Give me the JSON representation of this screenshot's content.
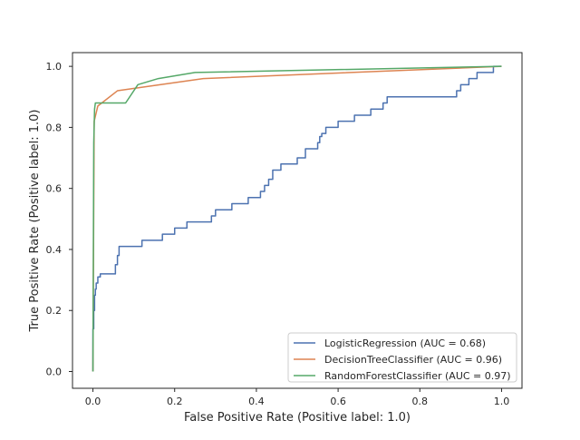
{
  "chart_data": {
    "type": "line",
    "title": "",
    "xlabel": "False Positive Rate (Positive label: 1.0)",
    "ylabel": "True Positive Rate (Positive label: 1.0)",
    "xlim": [
      -0.05,
      1.05
    ],
    "ylim": [
      -0.055,
      1.045
    ],
    "x_ticks": [
      0.0,
      0.2,
      0.4,
      0.6,
      0.8,
      1.0
    ],
    "y_ticks": [
      0.0,
      0.2,
      0.4,
      0.6,
      0.8,
      1.0
    ],
    "x_tick_labels": [
      "0.0",
      "0.2",
      "0.4",
      "0.6",
      "0.8",
      "1.0"
    ],
    "y_tick_labels": [
      "0.0",
      "0.2",
      "0.4",
      "0.6",
      "0.8",
      "1.0"
    ],
    "grid": false,
    "legend_position": "lower-right",
    "series": [
      {
        "name": "LogisticRegression (AUC = 0.68)",
        "color": "#4c72b0",
        "x": [
          0.0,
          0.0,
          0.002,
          0.002,
          0.004,
          0.004,
          0.006,
          0.006,
          0.008,
          0.008,
          0.012,
          0.012,
          0.018,
          0.018,
          0.055,
          0.055,
          0.06,
          0.06,
          0.064,
          0.064,
          0.12,
          0.12,
          0.17,
          0.17,
          0.2,
          0.2,
          0.23,
          0.23,
          0.29,
          0.29,
          0.3,
          0.3,
          0.34,
          0.34,
          0.38,
          0.38,
          0.41,
          0.41,
          0.42,
          0.42,
          0.43,
          0.43,
          0.44,
          0.44,
          0.46,
          0.46,
          0.5,
          0.5,
          0.52,
          0.52,
          0.55,
          0.55,
          0.555,
          0.555,
          0.56,
          0.56,
          0.57,
          0.57,
          0.6,
          0.6,
          0.64,
          0.64,
          0.68,
          0.68,
          0.71,
          0.71,
          0.72,
          0.72,
          0.89,
          0.89,
          0.9,
          0.9,
          0.92,
          0.92,
          0.94,
          0.94,
          0.95,
          0.95,
          0.98,
          0.98,
          1.0
        ],
        "y": [
          0.0,
          0.14,
          0.14,
          0.2,
          0.2,
          0.25,
          0.25,
          0.27,
          0.27,
          0.29,
          0.29,
          0.31,
          0.31,
          0.32,
          0.32,
          0.35,
          0.35,
          0.38,
          0.38,
          0.41,
          0.41,
          0.43,
          0.43,
          0.45,
          0.45,
          0.47,
          0.47,
          0.49,
          0.49,
          0.51,
          0.51,
          0.53,
          0.53,
          0.55,
          0.55,
          0.57,
          0.57,
          0.59,
          0.59,
          0.61,
          0.61,
          0.63,
          0.63,
          0.66,
          0.66,
          0.68,
          0.68,
          0.7,
          0.7,
          0.73,
          0.73,
          0.75,
          0.75,
          0.77,
          0.77,
          0.78,
          0.78,
          0.8,
          0.8,
          0.82,
          0.82,
          0.84,
          0.84,
          0.86,
          0.86,
          0.88,
          0.88,
          0.9,
          0.9,
          0.92,
          0.92,
          0.94,
          0.94,
          0.96,
          0.96,
          0.98,
          0.98,
          0.98,
          0.98,
          1.0,
          1.0
        ]
      },
      {
        "name": "DecisionTreeClassifier (AUC = 0.96)",
        "color": "#dd8452",
        "x": [
          0.0,
          0.003,
          0.012,
          0.06,
          0.27,
          1.0
        ],
        "y": [
          0.0,
          0.82,
          0.87,
          0.92,
          0.96,
          1.0
        ]
      },
      {
        "name": "RandomForestClassifier (AUC = 0.97)",
        "color": "#55a868",
        "x": [
          0.0,
          0.002,
          0.004,
          0.006,
          0.008,
          0.08,
          0.11,
          0.16,
          0.25,
          1.0
        ],
        "y": [
          0.0,
          0.75,
          0.86,
          0.88,
          0.88,
          0.88,
          0.94,
          0.96,
          0.98,
          1.0
        ]
      }
    ]
  }
}
